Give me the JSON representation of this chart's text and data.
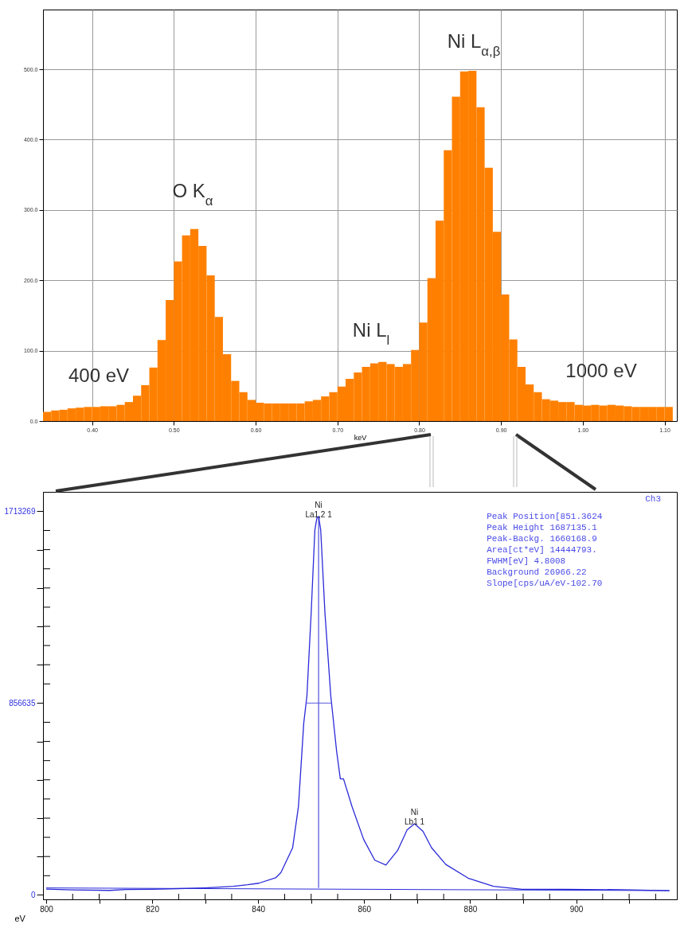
{
  "chart_data": [
    {
      "type": "histogram",
      "xlabel": "keV",
      "bins": [
        0.34,
        0.35,
        0.36,
        0.37,
        0.38,
        0.39,
        0.4,
        0.41,
        0.42,
        0.43,
        0.44,
        0.45,
        0.46,
        0.47,
        0.48,
        0.49,
        0.5,
        0.51,
        0.52,
        0.53,
        0.54,
        0.55,
        0.56,
        0.57,
        0.58,
        0.59,
        0.6,
        0.61,
        0.62,
        0.63,
        0.64,
        0.65,
        0.66,
        0.67,
        0.68,
        0.69,
        0.7,
        0.71,
        0.72,
        0.73,
        0.74,
        0.75,
        0.76,
        0.77,
        0.78,
        0.79,
        0.8,
        0.81,
        0.82,
        0.83,
        0.84,
        0.85,
        0.86,
        0.87,
        0.88,
        0.89,
        0.9,
        0.91,
        0.92,
        0.93,
        0.94,
        0.95,
        0.96,
        0.97,
        0.98,
        0.99,
        1.0,
        1.01,
        1.02,
        1.03,
        1.04,
        1.05,
        1.06,
        1.07,
        1.08,
        1.09,
        1.1,
        1.11
      ],
      "values": [
        13,
        15,
        16,
        18,
        19,
        20,
        20,
        21,
        21,
        23,
        27,
        36,
        51,
        76,
        115,
        172,
        227,
        264,
        273,
        249,
        207,
        148,
        95,
        57,
        41,
        30,
        26,
        25,
        25,
        25,
        25,
        25,
        28,
        30,
        35,
        41,
        49,
        60,
        69,
        77,
        82,
        84,
        81,
        77,
        81,
        101,
        140,
        203,
        285,
        385,
        461,
        497,
        498,
        446,
        360,
        269,
        180,
        116,
        77,
        52,
        41,
        31,
        29,
        27,
        27,
        23,
        22,
        23,
        22,
        23,
        22,
        21,
        20,
        20,
        20,
        20,
        20
      ],
      "color": "#ff8000",
      "xlim": [
        0.34,
        1.115
      ],
      "ylim": [
        0,
        585
      ],
      "xticks": [
        {
          "value": 0.4,
          "label": "0.40"
        },
        {
          "value": 0.5,
          "label": "0.50"
        },
        {
          "value": 0.6,
          "label": "0.60"
        },
        {
          "value": 0.7,
          "label": "0.70"
        },
        {
          "value": 0.8,
          "label": "0.80"
        },
        {
          "value": 0.9,
          "label": "0.90"
        },
        {
          "value": 1.0,
          "label": "1.00"
        },
        {
          "value": 1.1,
          "label": "1.10"
        }
      ],
      "yticks": [
        {
          "value": 0,
          "label": "0.0"
        },
        {
          "value": 100,
          "label": "100.0"
        },
        {
          "value": 200,
          "label": "200.0"
        },
        {
          "value": 300,
          "label": "300.0"
        },
        {
          "value": 400,
          "label": "400.0"
        },
        {
          "value": 500,
          "label": "500.0"
        }
      ],
      "grid": true,
      "annotations": [
        "O K$_{α}$",
        "Ni L$_{α,β}$",
        "Ni L$_{l}$",
        "400 eV",
        "1000 eV"
      ]
    },
    {
      "type": "line",
      "xlabel": "eV",
      "xlim": [
        799.4,
        919
      ],
      "ylim": [
        -20000,
        1800000
      ],
      "xticks": [
        800,
        {
          "value": 805,
          "label": null
        },
        {
          "value": 810,
          "label": null
        },
        {
          "value": 815,
          "label": null
        },
        820,
        {
          "value": 825,
          "label": null
        },
        {
          "value": 830,
          "label": null
        },
        {
          "value": 835,
          "label": null
        },
        840,
        {
          "value": 845,
          "label": null
        },
        {
          "value": 850,
          "label": null
        },
        {
          "value": 855,
          "label": null
        },
        860,
        {
          "value": 865,
          "label": null
        },
        {
          "value": 870,
          "label": null
        },
        {
          "value": 875,
          "label": null
        },
        880,
        {
          "value": 885,
          "label": null
        },
        {
          "value": 890,
          "label": null
        },
        {
          "value": 895,
          "label": null
        },
        900,
        {
          "value": 905,
          "label": null
        },
        {
          "value": 910,
          "label": null
        },
        {
          "value": 915,
          "label": null
        }
      ],
      "yticks": [
        0,
        {
          "value": 85663.5,
          "label": null
        },
        {
          "value": 171327,
          "label": null
        },
        {
          "value": 256990.5,
          "label": null
        },
        {
          "value": 342654,
          "label": null
        },
        {
          "value": 428317.5,
          "label": null
        },
        {
          "value": 513981,
          "label": null
        },
        {
          "value": 599644.5,
          "label": null
        },
        {
          "value": 685308,
          "label": null
        },
        {
          "value": 770971.5,
          "label": null
        },
        856635,
        {
          "value": 942298.5,
          "label": null
        },
        {
          "value": 1027962,
          "label": null
        },
        {
          "value": 1113625.5,
          "label": null
        },
        {
          "value": 1199289,
          "label": null
        },
        {
          "value": 1284952.5,
          "label": null
        },
        {
          "value": 1370616,
          "label": null
        },
        {
          "value": 1456279.5,
          "label": null
        },
        {
          "value": 1541943,
          "label": null
        },
        {
          "value": 1627606.5,
          "label": null
        },
        1713269
      ],
      "grid": false,
      "series": [
        {
          "color": "#2a2ad8",
          "x": [
            800,
            805,
            812,
            815,
            820,
            825,
            830,
            835.3,
            838,
            840.1,
            843.3,
            844.3,
            846.5,
            847.6,
            848.6,
            849.2,
            850.0,
            850.7,
            851.1,
            851.4,
            851.8,
            852.6,
            853.7,
            854.8,
            855.5,
            856.1,
            857.7,
            859.9,
            862.0,
            864.1,
            866.3,
            868.1,
            869.5,
            871.1,
            872.7,
            875.4,
            879.6,
            884.4,
            889.8,
            897.8,
            908.5,
            917.6
          ],
          "values": [
            26000,
            22000,
            20000,
            24000,
            25000,
            28000,
            31000,
            38000,
            45000,
            52000,
            76000,
            100000,
            210000,
            395000,
            767000,
            889000,
            1259000,
            1630000,
            1686000,
            1690000,
            1630000,
            1259000,
            889000,
            642000,
            518000,
            518000,
            395000,
            248000,
            155000,
            133000,
            198000,
            290000,
            318000,
            284000,
            211000,
            136000,
            75000,
            38000,
            25000,
            25000,
            23000,
            19000
          ]
        },
        {
          "color": "#2a2ad8",
          "x": [
            800,
            917.6
          ],
          "values": [
            31000,
            19000
          ]
        },
        {
          "color": "#2a2ad8",
          "x": [
            851.4,
            851.4
          ],
          "values": [
            31000,
            1690000
          ]
        },
        {
          "color": "#5a5ae0",
          "x": [
            848.96,
            853.77
          ],
          "values": [
            856635,
            856635
          ]
        }
      ],
      "annotations": [
        {
          "text": "Ni\nLa1,2 1",
          "x": 851.4,
          "y": 1690000
        },
        {
          "text": "Ni\nLb1 1",
          "x": 869.5,
          "y": 318000
        },
        "Ch3",
        "Peak Position[851.3624",
        "Peak Height    1687135.1",
        "Peak-Backg.    1660168.9",
        "Area[ct*eV]    14444793.",
        "FWHM[eV]          4.8008",
        "Background     26966.22",
        "Slope[cps/uA/eV-102.70"
      ]
    }
  ]
}
